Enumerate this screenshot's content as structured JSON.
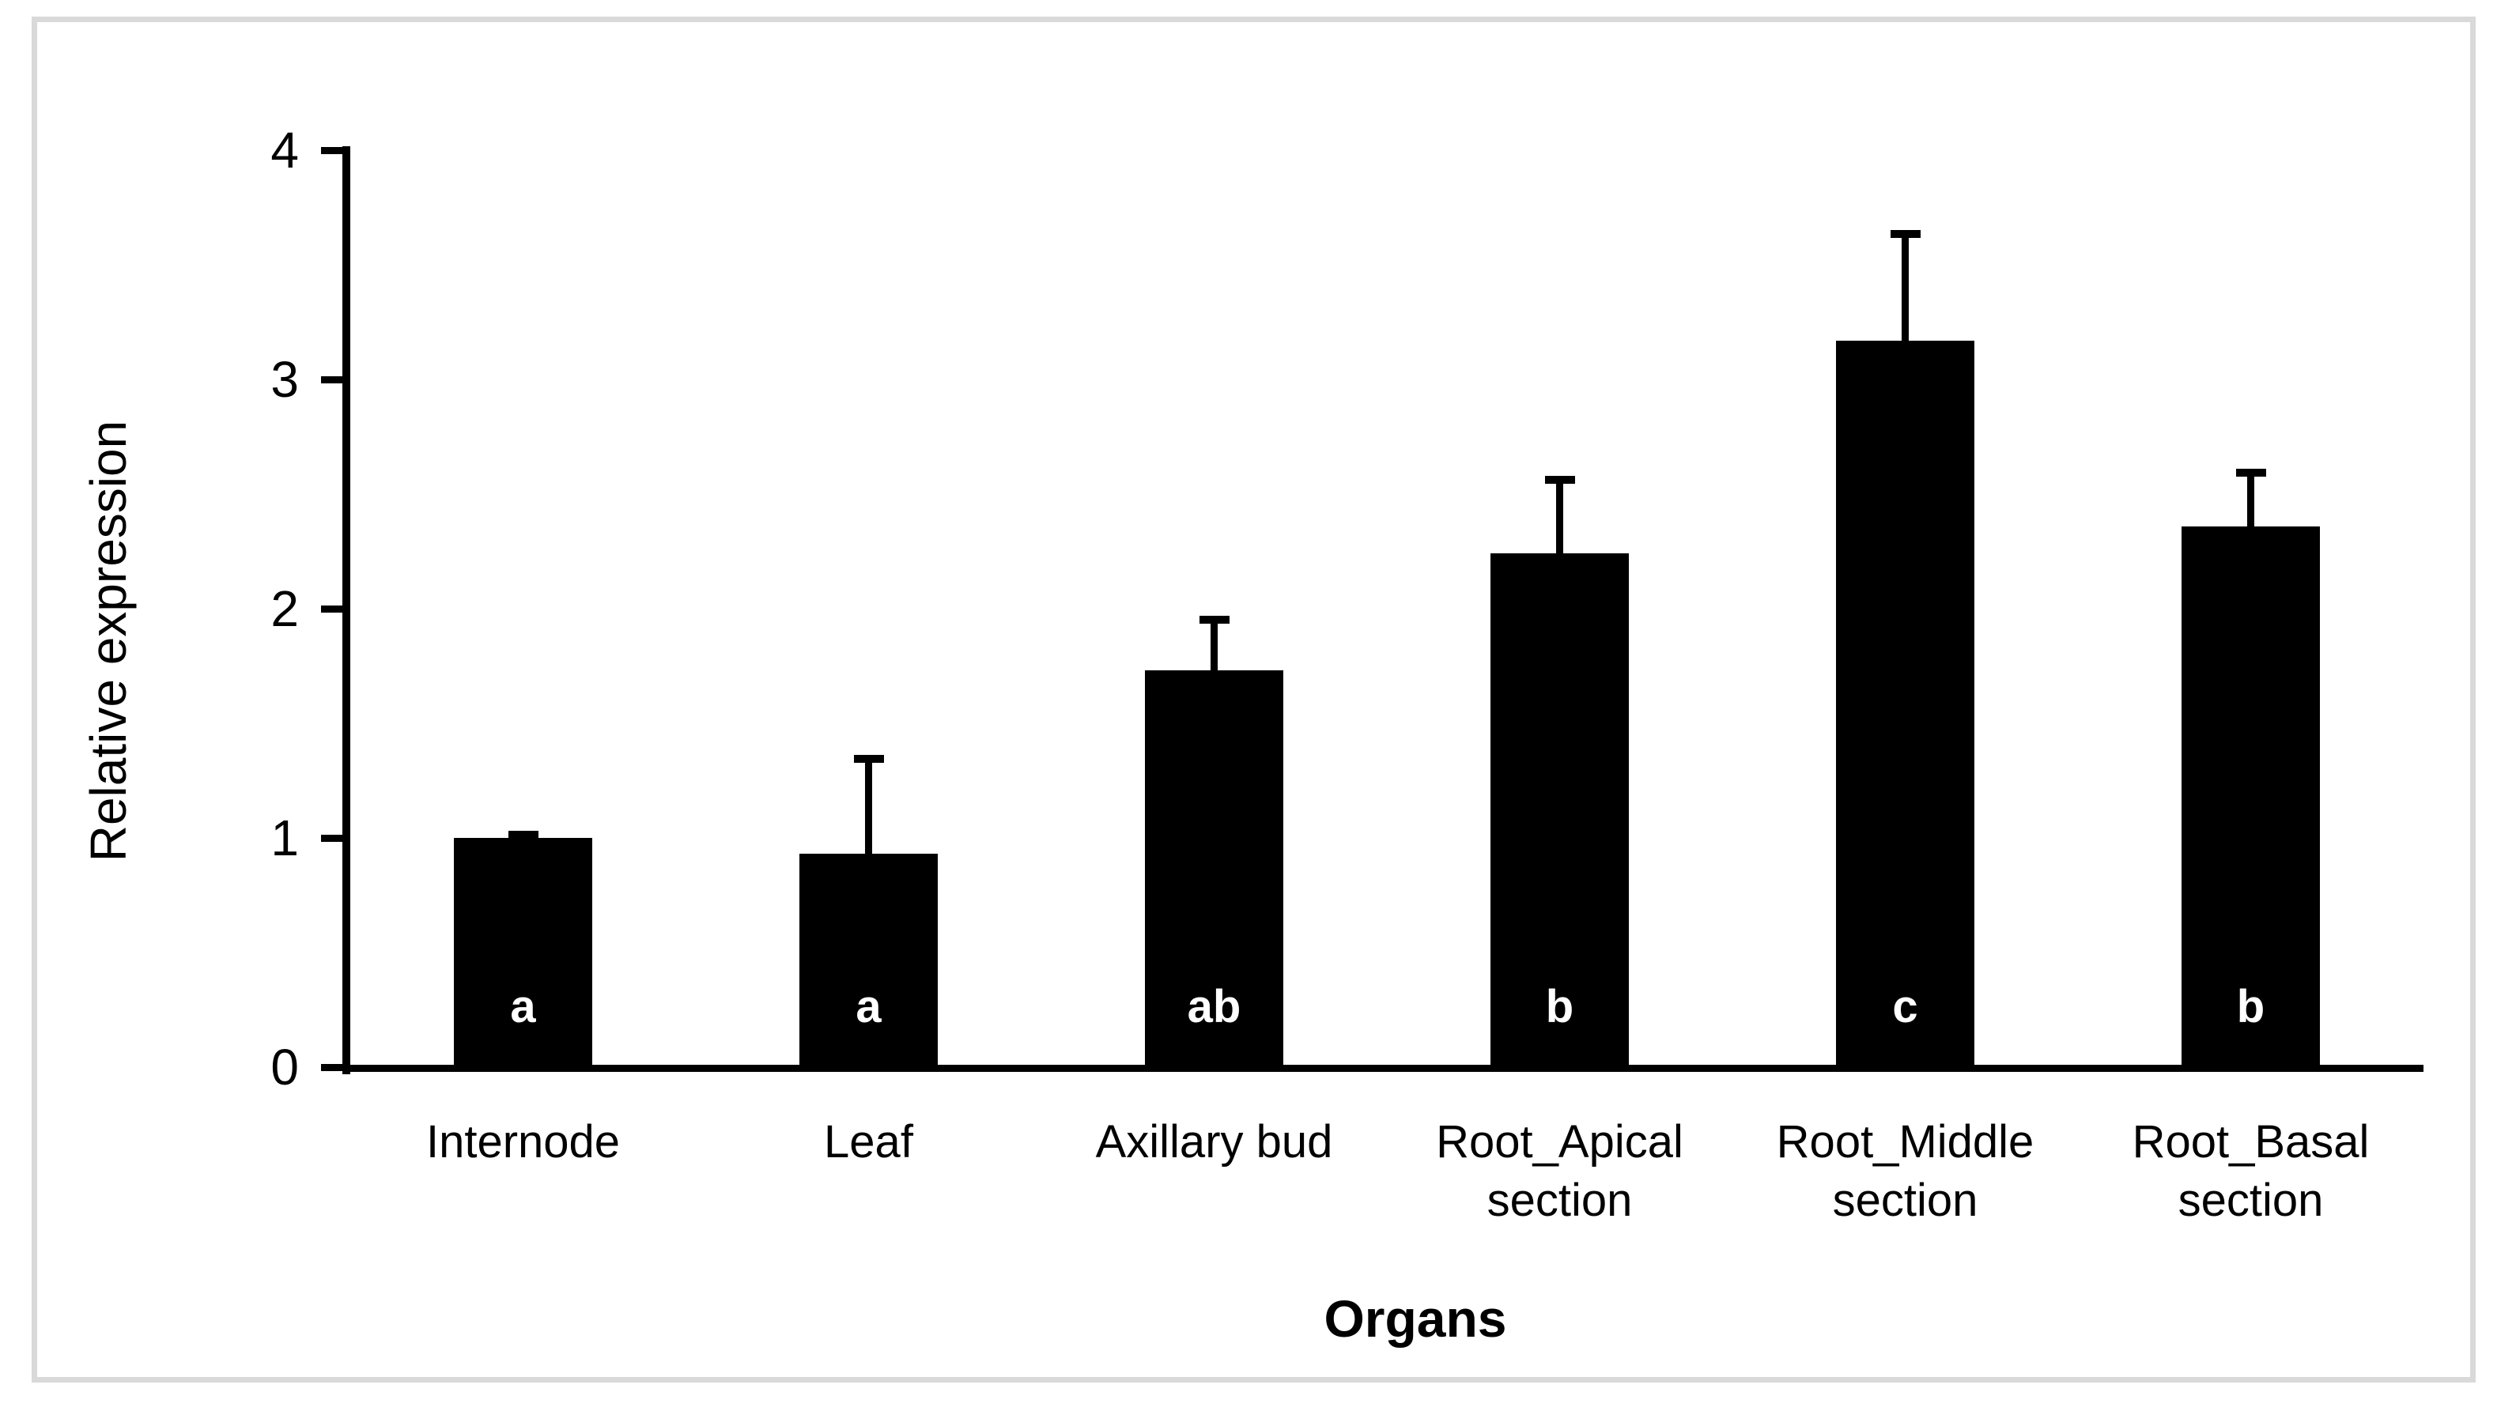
{
  "figure": {
    "background_color": "#ffffff",
    "frame_color": "#d9d9d9"
  },
  "chart_data": {
    "type": "bar",
    "title": "",
    "xlabel": "Organs",
    "ylabel": "Relative expression",
    "categories": [
      "Internode",
      "Leaf",
      "Axillary bud",
      "Root_Apical section",
      "Root_Middle section",
      "Root_Basal section"
    ],
    "values": [
      1.0,
      0.93,
      1.73,
      2.24,
      3.17,
      2.36
    ],
    "error_bars_upper": [
      0.01,
      0.41,
      0.22,
      0.32,
      0.46,
      0.23
    ],
    "significance_letters": [
      "a",
      "a",
      "ab",
      "b",
      "c",
      "b"
    ],
    "bar_color": "#000000",
    "significance_letter_color": "#ffffff",
    "error_bar_color": "#000000",
    "ylim": [
      0,
      4
    ],
    "yticks": [
      0,
      1,
      2,
      3,
      4
    ],
    "grid": false,
    "legend": "none"
  }
}
